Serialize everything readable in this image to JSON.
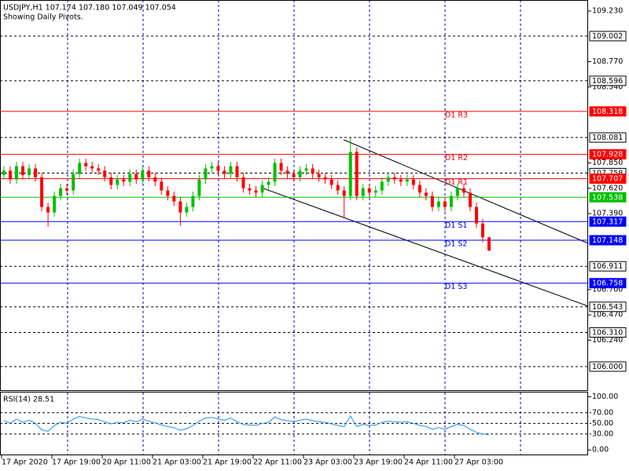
{
  "chart_data": {
    "type": "candlestick",
    "title": "USDJPY,H1  107.174 107.180 107.049 107.054",
    "subtitle": "Showing Daily Pivots.",
    "up_color": "#00c000",
    "down_color": "#ff0000",
    "ylim": [
      105.786,
      109.33
    ],
    "yticks": [
      {
        "value": 109.23,
        "label": "109.230"
      },
      {
        "value": 108.77,
        "label": "108.770"
      },
      {
        "value": 108.54,
        "label": "108.540"
      },
      {
        "value": 107.85,
        "label": "107.850"
      },
      {
        "value": 107.62,
        "label": "107.620"
      },
      {
        "value": 107.39,
        "label": "107.390"
      },
      {
        "value": 106.7,
        "label": "106.700"
      },
      {
        "value": 106.47,
        "label": "106.470"
      },
      {
        "value": 106.24,
        "label": "106.240"
      }
    ],
    "x_labels": [
      "17 Apr 2020",
      "17 Apr 19:00",
      "20 Apr 11:00",
      "21 Apr 03:00",
      "21 Apr 19:00",
      "22 Apr 11:00",
      "23 Apr 03:00",
      "23 Apr 19:00",
      "24 Apr 11:00",
      "27 Apr 03:00"
    ],
    "open": [
      107.74,
      107.78,
      107.7,
      107.82,
      107.74,
      107.8,
      107.72,
      107.45,
      107.4,
      107.55,
      107.62,
      107.6,
      107.75,
      107.85,
      107.82,
      107.8,
      107.78,
      107.72,
      107.65,
      107.7,
      107.68,
      107.75,
      107.7,
      107.78,
      107.72,
      107.68,
      107.6,
      107.55,
      107.5,
      107.4,
      107.45,
      107.55,
      107.7,
      107.8,
      107.82,
      107.78,
      107.75,
      107.82,
      107.72,
      107.62,
      107.6,
      107.58,
      107.65,
      107.68,
      107.85,
      107.78,
      107.75,
      107.72,
      107.78,
      107.8,
      107.75,
      107.72,
      107.7,
      107.65,
      107.6,
      107.55,
      107.95,
      107.55,
      107.62,
      107.58,
      107.6,
      107.68,
      107.72,
      107.7,
      107.68,
      107.7,
      107.65,
      107.58,
      107.55,
      107.45,
      107.5,
      107.45,
      107.55,
      107.62,
      107.58,
      107.45,
      107.3,
      107.174
    ],
    "high": [
      107.82,
      107.82,
      107.86,
      107.86,
      107.84,
      107.84,
      107.76,
      107.49,
      107.59,
      107.66,
      107.66,
      107.79,
      107.89,
      107.89,
      107.86,
      107.84,
      107.82,
      107.76,
      107.74,
      107.74,
      107.79,
      107.79,
      107.82,
      107.82,
      107.76,
      107.72,
      107.64,
      107.59,
      107.54,
      107.49,
      107.59,
      107.74,
      107.84,
      107.86,
      107.86,
      107.82,
      107.86,
      107.86,
      107.76,
      107.66,
      107.64,
      107.69,
      107.72,
      107.89,
      107.89,
      107.82,
      107.79,
      107.82,
      107.84,
      107.84,
      107.79,
      107.76,
      107.74,
      107.69,
      107.64,
      108.08,
      107.99,
      107.66,
      107.66,
      107.64,
      107.72,
      107.76,
      107.76,
      107.74,
      107.74,
      107.74,
      107.69,
      107.62,
      107.59,
      107.54,
      107.54,
      107.59,
      107.66,
      107.66,
      107.62,
      107.49,
      107.34,
      107.18
    ],
    "low": [
      107.7,
      107.66,
      107.66,
      107.7,
      107.7,
      107.68,
      107.41,
      107.27,
      107.36,
      107.51,
      107.56,
      107.56,
      107.71,
      107.78,
      107.76,
      107.74,
      107.68,
      107.61,
      107.61,
      107.64,
      107.64,
      107.66,
      107.66,
      107.68,
      107.64,
      107.56,
      107.51,
      107.46,
      107.28,
      107.36,
      107.41,
      107.51,
      107.66,
      107.76,
      107.74,
      107.71,
      107.71,
      107.68,
      107.58,
      107.56,
      107.54,
      107.54,
      107.61,
      107.64,
      107.74,
      107.71,
      107.68,
      107.68,
      107.74,
      107.71,
      107.68,
      107.66,
      107.61,
      107.56,
      107.35,
      107.51,
      107.51,
      107.51,
      107.54,
      107.54,
      107.56,
      107.64,
      107.66,
      107.64,
      107.64,
      107.61,
      107.54,
      107.51,
      107.41,
      107.41,
      107.41,
      107.41,
      107.51,
      107.54,
      107.41,
      107.26,
      107.13,
      107.049
    ],
    "close": [
      107.78,
      107.7,
      107.82,
      107.74,
      107.8,
      107.72,
      107.45,
      107.4,
      107.55,
      107.62,
      107.6,
      107.75,
      107.85,
      107.82,
      107.8,
      107.78,
      107.72,
      107.65,
      107.7,
      107.68,
      107.75,
      107.7,
      107.78,
      107.72,
      107.68,
      107.6,
      107.55,
      107.5,
      107.4,
      107.45,
      107.55,
      107.7,
      107.8,
      107.82,
      107.78,
      107.75,
      107.82,
      107.72,
      107.62,
      107.6,
      107.58,
      107.65,
      107.68,
      107.85,
      107.78,
      107.75,
      107.72,
      107.78,
      107.8,
      107.75,
      107.72,
      107.7,
      107.65,
      107.6,
      107.55,
      107.95,
      107.55,
      107.62,
      107.58,
      107.6,
      107.68,
      107.72,
      107.7,
      107.68,
      107.7,
      107.65,
      107.58,
      107.55,
      107.45,
      107.5,
      107.45,
      107.55,
      107.62,
      107.58,
      107.45,
      107.3,
      107.174,
      107.054
    ],
    "levels": [
      {
        "value": 109.002,
        "label": "109.002",
        "color": "#000000",
        "style": "dashed"
      },
      {
        "value": 108.596,
        "label": "108.596",
        "color": "#000000",
        "style": "dashed"
      },
      {
        "value": 108.318,
        "label": "108.318",
        "color": "#ff0000",
        "style": "solid",
        "text": "D1 R3"
      },
      {
        "value": 108.081,
        "label": "108.081",
        "color": "#000000",
        "style": "dashed"
      },
      {
        "value": 107.928,
        "label": "107.928",
        "color": "#ff0000",
        "style": "solid",
        "text": "D1 R2"
      },
      {
        "value": 107.758,
        "label": "107.758",
        "color": "#000000",
        "style": "dashed"
      },
      {
        "value": 107.707,
        "label": "107.707",
        "color": "#ff0000",
        "style": "solid",
        "text": "D1 R1"
      },
      {
        "value": 107.538,
        "label": "107.538",
        "color": "#00c000",
        "style": "solid"
      },
      {
        "value": 107.317,
        "label": "107.317",
        "color": "#0000ff",
        "style": "solid",
        "text": "D1 S1"
      },
      {
        "value": 107.148,
        "label": "107.148",
        "color": "#0000ff",
        "style": "solid",
        "text": "D1 S2"
      },
      {
        "value": 106.911,
        "label": "106.911",
        "color": "#000000",
        "style": "dashed"
      },
      {
        "value": 106.758,
        "label": "106.758",
        "color": "#0000ff",
        "style": "solid",
        "text": "D1 S3"
      },
      {
        "value": 106.543,
        "label": "106.543",
        "color": "#000000",
        "style": "dashed"
      },
      {
        "value": 106.31,
        "label": "106.310",
        "color": "#000000",
        "style": "dashed"
      },
      {
        "value": 106.0,
        "label": "106.000",
        "color": "#000000",
        "style": "dashed"
      }
    ],
    "rsi": {
      "title": "RSI(14) 28.51",
      "color": "#1e90ff",
      "y2lim": [
        -10,
        108
      ],
      "y2ticks": [
        {
          "value": 100,
          "label": "100.00"
        },
        {
          "value": 70,
          "label": "70.00"
        },
        {
          "value": 50,
          "label": "50.00"
        },
        {
          "value": 30,
          "label": "30.00"
        },
        {
          "value": 0,
          "label": "0.00"
        }
      ],
      "values": [
        55,
        50,
        58,
        52,
        56,
        50,
        38,
        35,
        46,
        52,
        50,
        58,
        63,
        60,
        58,
        57,
        53,
        49,
        52,
        51,
        56,
        53,
        58,
        54,
        51,
        47,
        44,
        42,
        37,
        40,
        46,
        54,
        60,
        61,
        58,
        56,
        60,
        53,
        48,
        47,
        46,
        50,
        52,
        62,
        57,
        55,
        53,
        56,
        58,
        55,
        53,
        52,
        49,
        46,
        44,
        64,
        44,
        48,
        46,
        47,
        52,
        54,
        53,
        52,
        53,
        50,
        46,
        44,
        39,
        42,
        39,
        44,
        48,
        46,
        39,
        33,
        30,
        28.51
      ]
    }
  }
}
